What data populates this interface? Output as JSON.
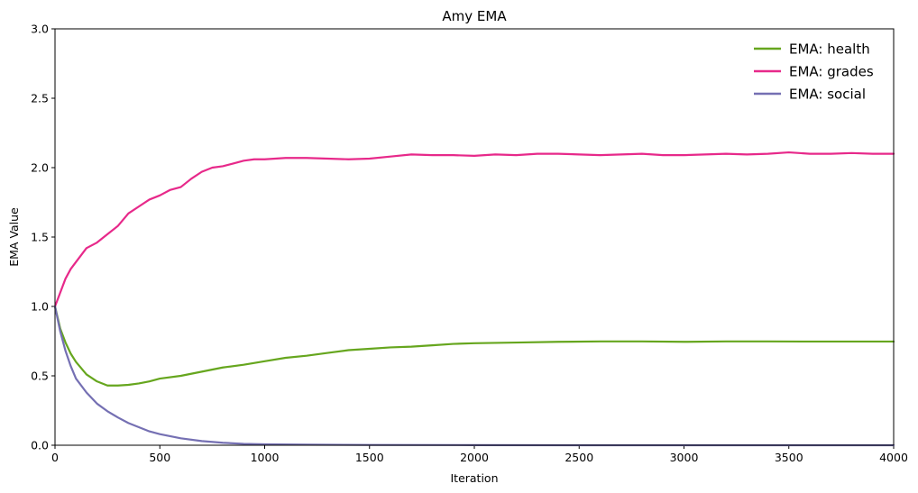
{
  "chart_data": {
    "type": "line",
    "title": "Amy EMA",
    "xlabel": "Iteration",
    "ylabel": "EMA Value",
    "xlim": [
      0,
      4000
    ],
    "ylim": [
      0,
      3.0
    ],
    "xticks": [
      "0",
      "500",
      "1000",
      "1500",
      "2000",
      "2500",
      "3000",
      "3500",
      "4000"
    ],
    "xtick_values": [
      0,
      500,
      1000,
      1500,
      2000,
      2500,
      3000,
      3500,
      4000
    ],
    "yticks": [
      "0.0",
      "0.5",
      "1.0",
      "1.5",
      "2.0",
      "2.5",
      "3.0"
    ],
    "ytick_values": [
      0,
      0.5,
      1.0,
      1.5,
      2.0,
      2.5,
      3.0
    ],
    "grid": false,
    "legend_position": "top-right",
    "series": [
      {
        "name": "EMA: health",
        "color": "#66a61e",
        "x": [
          0,
          25,
          50,
          75,
          100,
          150,
          200,
          250,
          300,
          350,
          400,
          450,
          500,
          600,
          700,
          800,
          900,
          1000,
          1100,
          1200,
          1300,
          1400,
          1500,
          1600,
          1700,
          1800,
          1900,
          2000,
          2200,
          2400,
          2600,
          2800,
          3000,
          3200,
          3400,
          3600,
          3800,
          4000
        ],
        "values": [
          1.0,
          0.84,
          0.74,
          0.66,
          0.6,
          0.51,
          0.46,
          0.43,
          0.43,
          0.435,
          0.445,
          0.46,
          0.48,
          0.5,
          0.53,
          0.56,
          0.58,
          0.605,
          0.63,
          0.645,
          0.665,
          0.685,
          0.695,
          0.705,
          0.71,
          0.72,
          0.73,
          0.735,
          0.74,
          0.745,
          0.748,
          0.748,
          0.745,
          0.748,
          0.748,
          0.747,
          0.747,
          0.747
        ]
      },
      {
        "name": "EMA: grades",
        "color": "#e7298a",
        "x": [
          0,
          25,
          50,
          75,
          100,
          150,
          200,
          250,
          300,
          350,
          400,
          450,
          500,
          550,
          600,
          650,
          700,
          750,
          800,
          850,
          900,
          950,
          1000,
          1100,
          1200,
          1300,
          1400,
          1500,
          1600,
          1700,
          1800,
          1900,
          2000,
          2100,
          2200,
          2300,
          2400,
          2500,
          2600,
          2700,
          2800,
          2900,
          3000,
          3100,
          3200,
          3300,
          3400,
          3500,
          3600,
          3700,
          3800,
          3900,
          4000
        ],
        "values": [
          1.0,
          1.1,
          1.2,
          1.27,
          1.32,
          1.42,
          1.46,
          1.52,
          1.58,
          1.67,
          1.72,
          1.77,
          1.8,
          1.84,
          1.86,
          1.92,
          1.97,
          2.0,
          2.01,
          2.03,
          2.05,
          2.06,
          2.06,
          2.07,
          2.07,
          2.065,
          2.06,
          2.065,
          2.08,
          2.095,
          2.09,
          2.09,
          2.085,
          2.095,
          2.09,
          2.1,
          2.1,
          2.095,
          2.09,
          2.095,
          2.1,
          2.09,
          2.09,
          2.095,
          2.1,
          2.095,
          2.1,
          2.11,
          2.1,
          2.1,
          2.105,
          2.1,
          2.1
        ]
      },
      {
        "name": "EMA: social",
        "color": "#7570b3",
        "x": [
          0,
          25,
          50,
          75,
          100,
          150,
          200,
          250,
          300,
          350,
          400,
          450,
          500,
          600,
          700,
          800,
          900,
          1000,
          1200,
          1500,
          2000,
          2500,
          3000,
          3500,
          4000
        ],
        "values": [
          1.0,
          0.82,
          0.68,
          0.57,
          0.48,
          0.38,
          0.3,
          0.245,
          0.2,
          0.16,
          0.13,
          0.1,
          0.08,
          0.05,
          0.03,
          0.018,
          0.01,
          0.007,
          0.004,
          0.002,
          0.001,
          0.0,
          0.0,
          0.0,
          0.0
        ]
      }
    ]
  }
}
